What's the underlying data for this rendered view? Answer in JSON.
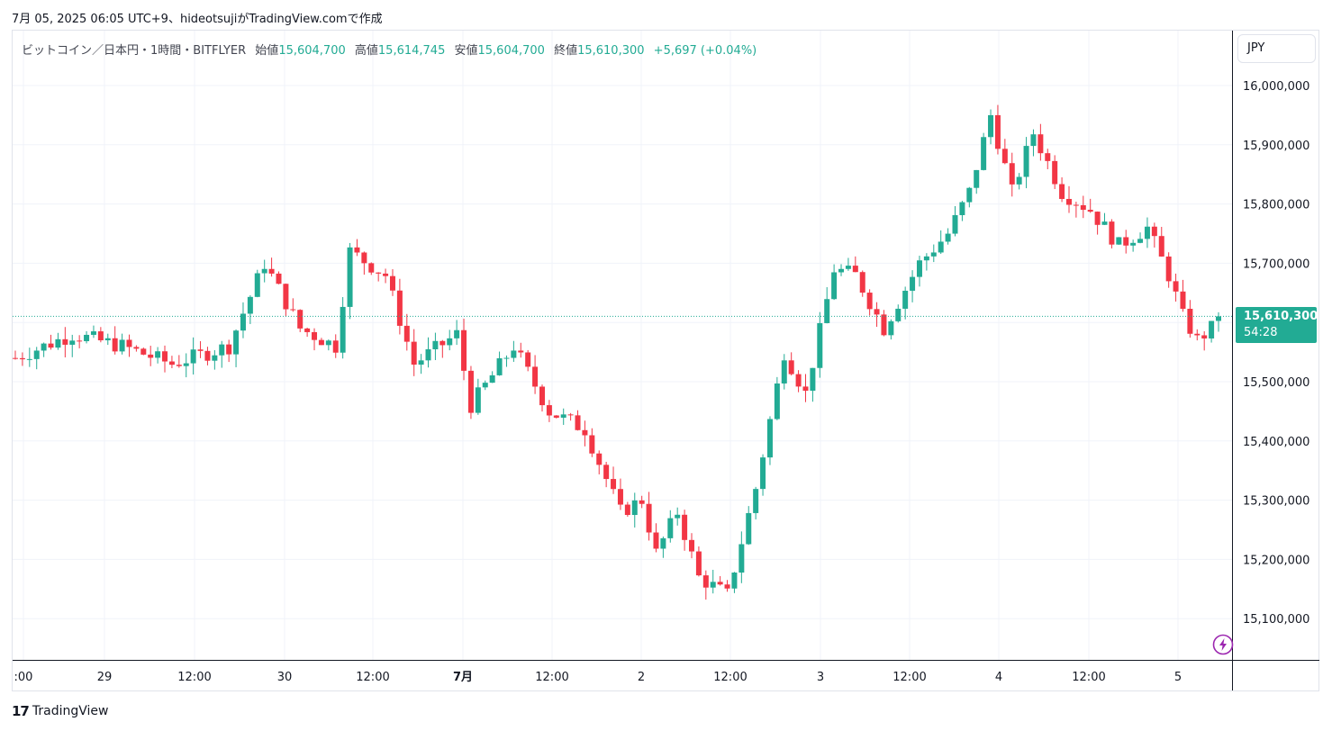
{
  "header": {
    "caption": "7月 05, 2025 06:05 UTC+9、hideotsujiがTradingView.comで作成"
  },
  "legend": {
    "symbol": "ビットコイン／日本円・1時間・BITFLYER",
    "open_label": "始値",
    "open": "15,604,700",
    "high_label": "高値",
    "high": "15,614,745",
    "low_label": "安値",
    "low": "15,604,700",
    "close_label": "終値",
    "close": "15,610,300",
    "change": "+5,697 (+0.04%)"
  },
  "currency": "JPY",
  "last_price": {
    "price": "15,610,300",
    "countdown": "54:28"
  },
  "footer": {
    "brand": "TradingView",
    "logo": "17"
  },
  "colors": {
    "up": "#22ab94",
    "down": "#f23645",
    "grid": "#f0f3fa"
  },
  "chart_data": {
    "type": "candlestick",
    "y_ticks": [
      "16,000,000",
      "15,900,000",
      "15,800,000",
      "15,700,000",
      "15,600,000",
      "15,500,000",
      "15,400,000",
      "15,300,000",
      "15,200,000",
      "15,100,000"
    ],
    "x_ticks": [
      ":00",
      "29",
      "12:00",
      "30",
      "12:00",
      "7月",
      "12:00",
      "2",
      "12:00",
      "3",
      "12:00",
      "4",
      "12:00",
      "5"
    ],
    "ylim": [
      15040000,
      16100000
    ],
    "last_close": 15610300,
    "key_points": [
      {
        "x": 0,
        "y": 15540000
      },
      {
        "x": 8,
        "y": 15580000
      },
      {
        "x": 15,
        "y": 15560000
      },
      {
        "x": 22,
        "y": 15530000
      },
      {
        "x": 30,
        "y": 15560000
      },
      {
        "x": 35,
        "y": 15700000
      },
      {
        "x": 40,
        "y": 15590000
      },
      {
        "x": 45,
        "y": 15560000
      },
      {
        "x": 47,
        "y": 15720000
      },
      {
        "x": 52,
        "y": 15680000
      },
      {
        "x": 56,
        "y": 15530000
      },
      {
        "x": 62,
        "y": 15580000
      },
      {
        "x": 64,
        "y": 15460000
      },
      {
        "x": 70,
        "y": 15560000
      },
      {
        "x": 75,
        "y": 15450000
      },
      {
        "x": 80,
        "y": 15420000
      },
      {
        "x": 85,
        "y": 15280000
      },
      {
        "x": 88,
        "y": 15300000
      },
      {
        "x": 90,
        "y": 15210000
      },
      {
        "x": 93,
        "y": 15280000
      },
      {
        "x": 96,
        "y": 15170000
      },
      {
        "x": 100,
        "y": 15140000
      },
      {
        "x": 104,
        "y": 15320000
      },
      {
        "x": 108,
        "y": 15550000
      },
      {
        "x": 111,
        "y": 15480000
      },
      {
        "x": 115,
        "y": 15690000
      },
      {
        "x": 118,
        "y": 15680000
      },
      {
        "x": 122,
        "y": 15590000
      },
      {
        "x": 127,
        "y": 15700000
      },
      {
        "x": 131,
        "y": 15750000
      },
      {
        "x": 134,
        "y": 15820000
      },
      {
        "x": 137,
        "y": 15950000
      },
      {
        "x": 140,
        "y": 15820000
      },
      {
        "x": 143,
        "y": 15920000
      },
      {
        "x": 147,
        "y": 15820000
      },
      {
        "x": 151,
        "y": 15790000
      },
      {
        "x": 155,
        "y": 15730000
      },
      {
        "x": 159,
        "y": 15760000
      },
      {
        "x": 162,
        "y": 15680000
      },
      {
        "x": 164,
        "y": 15610000
      },
      {
        "x": 166,
        "y": 15570000
      },
      {
        "x": 169,
        "y": 15600000
      }
    ]
  }
}
